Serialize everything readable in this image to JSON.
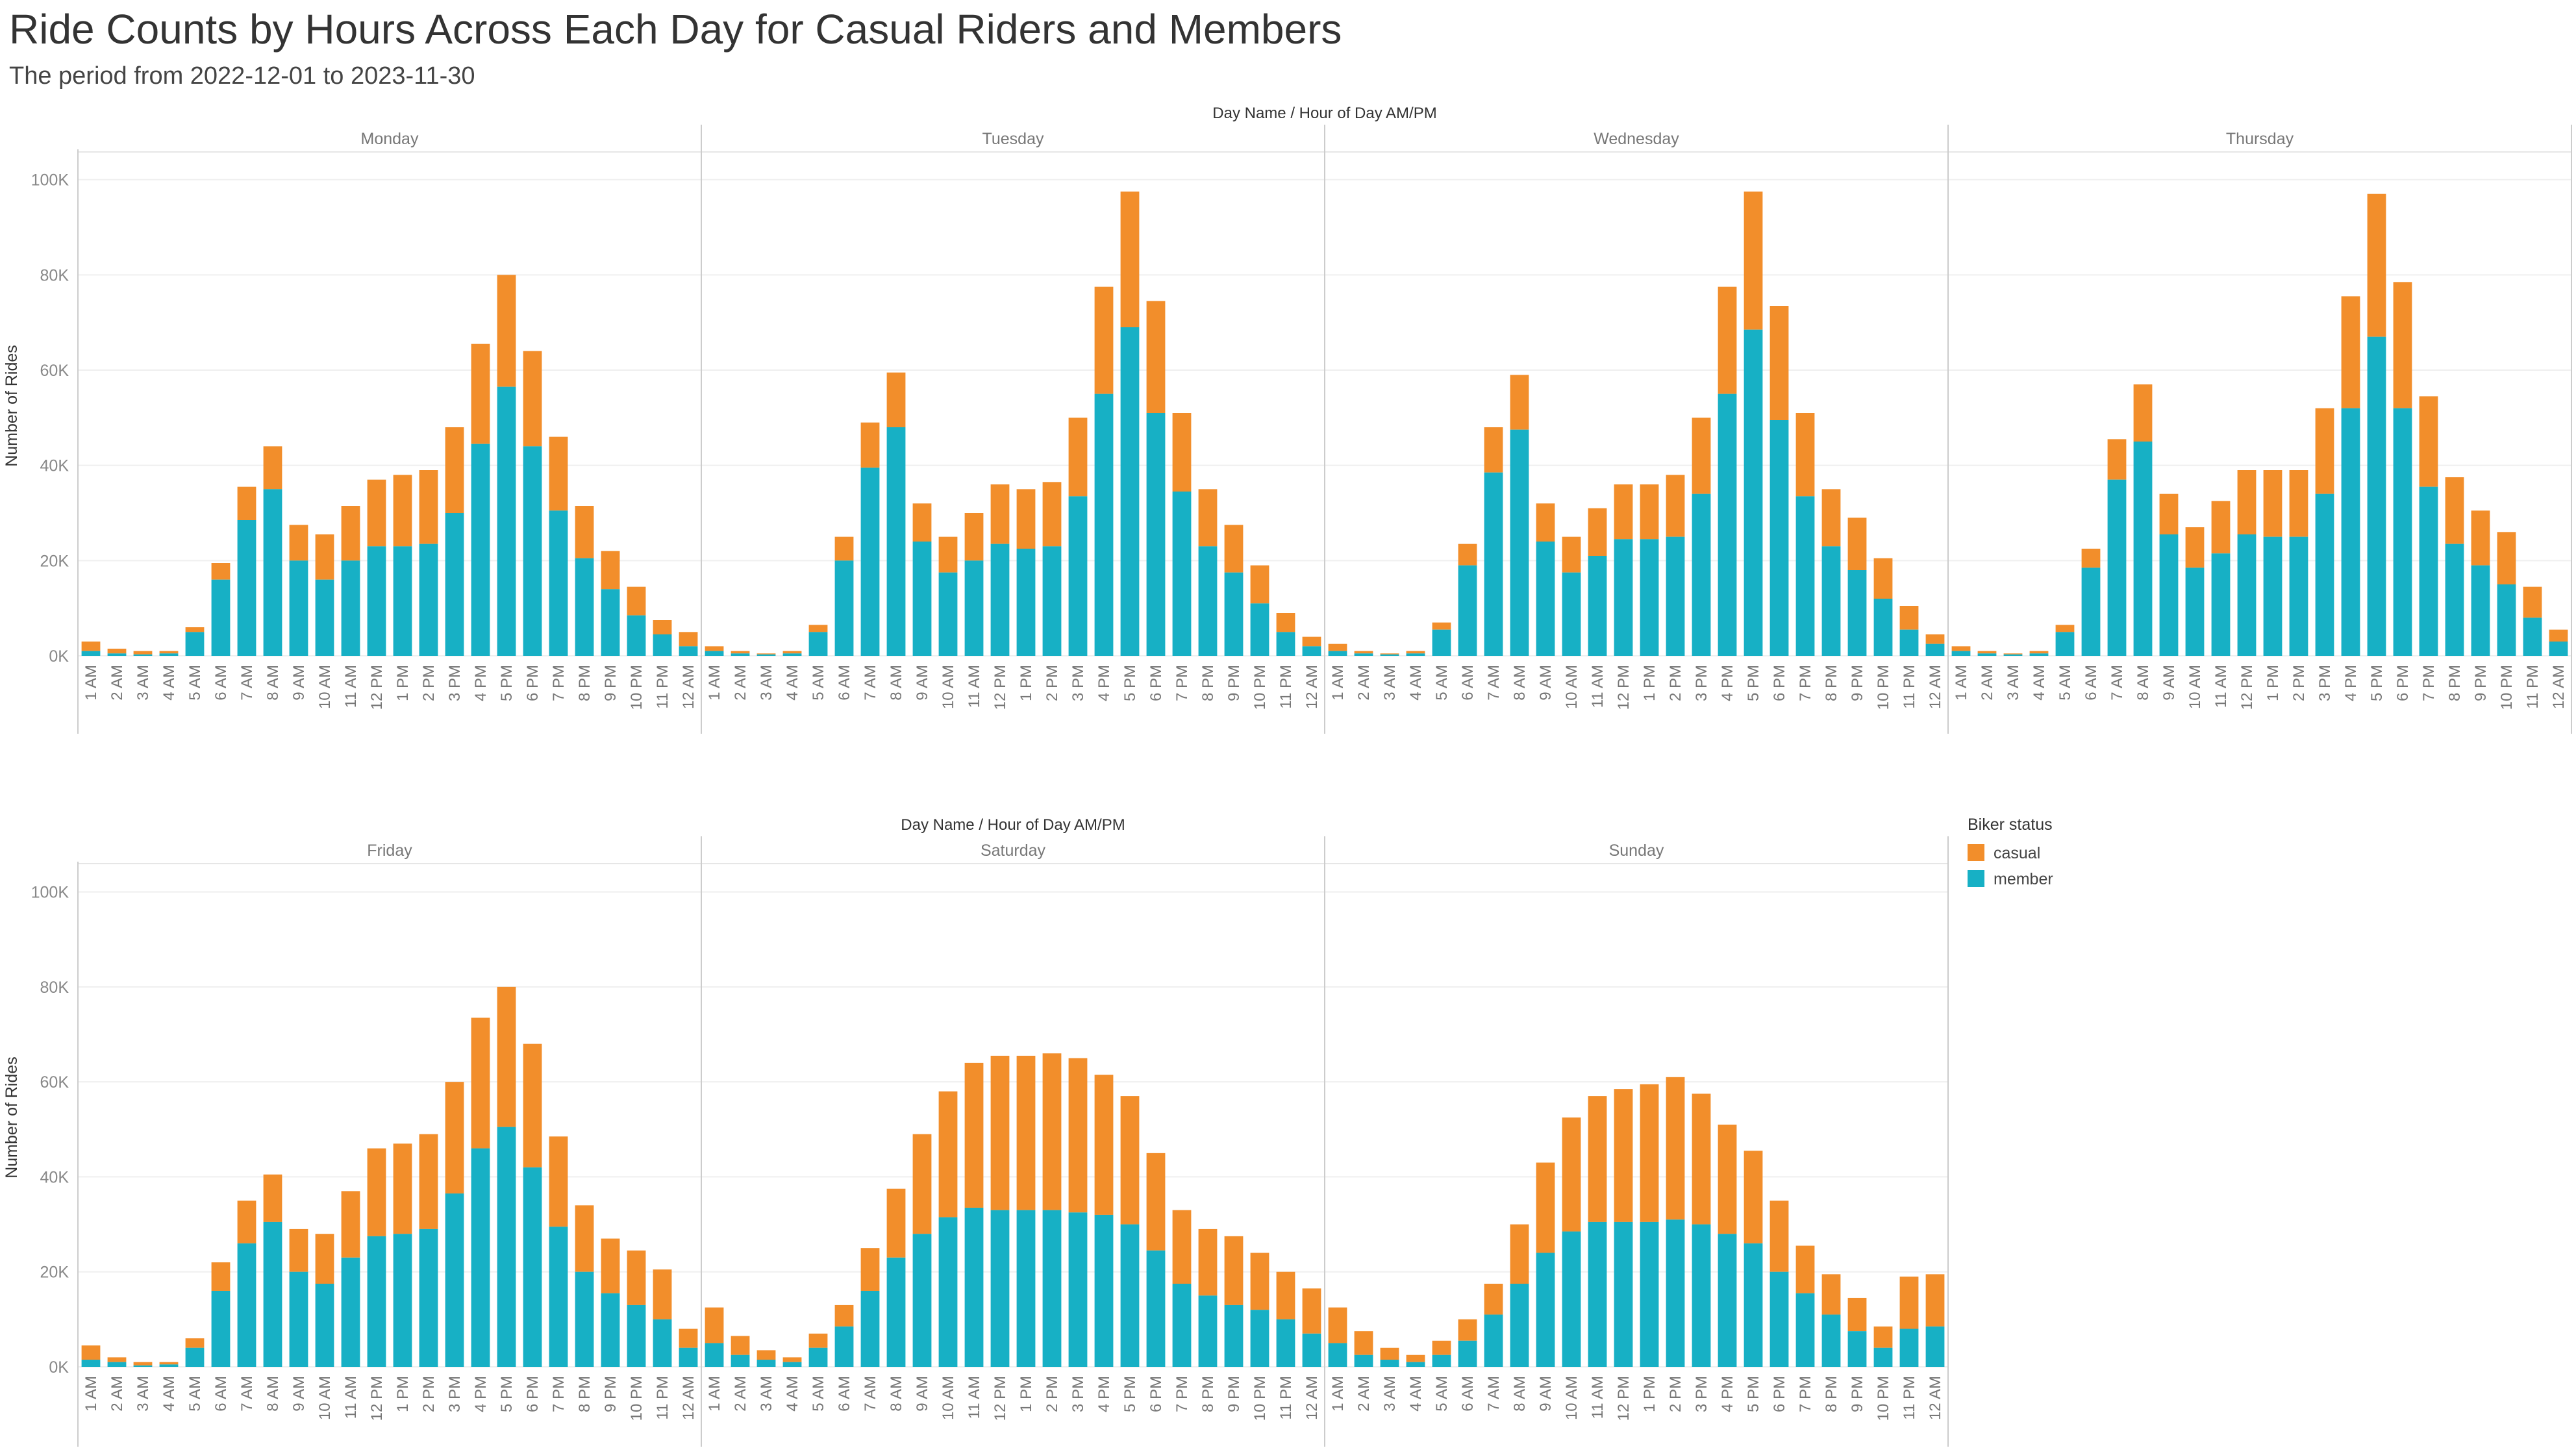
{
  "title": "Ride Counts by Hours Across Each Day for Casual Riders and Members",
  "subtitle": "The period from 2022-12-01 to 2023-11-30",
  "colors": {
    "casual": "#F28E2B",
    "member": "#17B0C5"
  },
  "legend": {
    "title": "Biker status",
    "items": [
      "casual",
      "member"
    ]
  },
  "chart_data": {
    "type": "bar",
    "stacked": true,
    "header_label": "Day Name  /  Hour of Day AM/PM",
    "ylabel": "Number of Rides",
    "ylim": [
      0,
      105000
    ],
    "y_ticks": [
      0,
      20000,
      40000,
      60000,
      80000,
      100000
    ],
    "y_tick_labels": [
      "0K",
      "20K",
      "40K",
      "60K",
      "80K",
      "100K"
    ],
    "grid": true,
    "legend_position": "right",
    "hours": [
      "1 AM",
      "2 AM",
      "3 AM",
      "4 AM",
      "5 AM",
      "6 AM",
      "7 AM",
      "8 AM",
      "9 AM",
      "10 AM",
      "11 AM",
      "12 PM",
      "1 PM",
      "2 PM",
      "3 PM",
      "4 PM",
      "5 PM",
      "6 PM",
      "7 PM",
      "8 PM",
      "9 PM",
      "10 PM",
      "11 PM",
      "12 AM"
    ],
    "series_names": [
      "member",
      "casual"
    ],
    "days": [
      {
        "name": "Monday",
        "member": [
          1000,
          500,
          300,
          500,
          5000,
          16000,
          28500,
          35000,
          20000,
          16000,
          20000,
          23000,
          23000,
          23500,
          30000,
          44500,
          56500,
          44000,
          30500,
          20500,
          14000,
          8500,
          4500,
          2000
        ],
        "total": [
          3000,
          1500,
          1000,
          1000,
          6000,
          19500,
          35500,
          44000,
          27500,
          25500,
          31500,
          37000,
          38000,
          39000,
          48000,
          65500,
          80000,
          64000,
          46000,
          31500,
          22000,
          14500,
          7500,
          5000
        ]
      },
      {
        "name": "Tuesday",
        "member": [
          1000,
          500,
          300,
          500,
          5000,
          20000,
          39500,
          48000,
          24000,
          17500,
          20000,
          23500,
          22500,
          23000,
          33500,
          55000,
          69000,
          51000,
          34500,
          23000,
          17500,
          11000,
          5000,
          2000
        ],
        "total": [
          2000,
          1000,
          500,
          1000,
          6500,
          25000,
          49000,
          59500,
          32000,
          25000,
          30000,
          36000,
          35000,
          36500,
          50000,
          77500,
          97500,
          74500,
          51000,
          35000,
          27500,
          19000,
          9000,
          4000
        ]
      },
      {
        "name": "Wednesday",
        "member": [
          1000,
          500,
          300,
          500,
          5500,
          19000,
          38500,
          47500,
          24000,
          17500,
          21000,
          24500,
          24500,
          25000,
          34000,
          55000,
          68500,
          49500,
          33500,
          23000,
          18000,
          12000,
          5500,
          2500
        ],
        "total": [
          2500,
          1000,
          500,
          1000,
          7000,
          23500,
          48000,
          59000,
          32000,
          25000,
          31000,
          36000,
          36000,
          38000,
          50000,
          77500,
          97500,
          73500,
          51000,
          35000,
          29000,
          20500,
          10500,
          4500
        ]
      },
      {
        "name": "Thursday",
        "member": [
          1000,
          500,
          300,
          500,
          5000,
          18500,
          37000,
          45000,
          25500,
          18500,
          21500,
          25500,
          25000,
          25000,
          34000,
          52000,
          67000,
          52000,
          35500,
          23500,
          19000,
          15000,
          8000,
          3000
        ],
        "total": [
          2000,
          1000,
          500,
          1000,
          6500,
          22500,
          45500,
          57000,
          34000,
          27000,
          32500,
          39000,
          39000,
          39000,
          52000,
          75500,
          97000,
          78500,
          54500,
          37500,
          30500,
          26000,
          14500,
          5500
        ]
      },
      {
        "name": "Friday",
        "member": [
          1500,
          1000,
          300,
          500,
          4000,
          16000,
          26000,
          30500,
          20000,
          17500,
          23000,
          27500,
          28000,
          29000,
          36500,
          46000,
          50500,
          42000,
          29500,
          20000,
          15500,
          13000,
          10000,
          4000
        ],
        "total": [
          4500,
          2000,
          1000,
          1000,
          6000,
          22000,
          35000,
          40500,
          29000,
          28000,
          37000,
          46000,
          47000,
          49000,
          60000,
          73500,
          80000,
          68000,
          48500,
          34000,
          27000,
          24500,
          20500,
          8000
        ]
      },
      {
        "name": "Saturday",
        "member": [
          5000,
          2500,
          1500,
          1000,
          4000,
          8500,
          16000,
          23000,
          28000,
          31500,
          33500,
          33000,
          33000,
          33000,
          32500,
          32000,
          30000,
          24500,
          17500,
          15000,
          13000,
          12000,
          10000,
          7000
        ],
        "total": [
          12500,
          6500,
          3500,
          2000,
          7000,
          13000,
          25000,
          37500,
          49000,
          58000,
          64000,
          65500,
          65500,
          66000,
          65000,
          61500,
          57000,
          45000,
          33000,
          29000,
          27500,
          24000,
          20000,
          16500
        ]
      },
      {
        "name": "Sunday",
        "member": [
          5000,
          2500,
          1500,
          1000,
          2500,
          5500,
          11000,
          17500,
          24000,
          28500,
          30500,
          30500,
          30500,
          31000,
          30000,
          28000,
          26000,
          20000,
          15500,
          11000,
          7500,
          4000,
          8000,
          8500
        ],
        "total": [
          12500,
          7500,
          4000,
          2500,
          5500,
          10000,
          17500,
          30000,
          43000,
          52500,
          57000,
          58500,
          59500,
          61000,
          57500,
          51000,
          45500,
          35000,
          25500,
          19500,
          14500,
          8500,
          19000,
          19500
        ]
      }
    ]
  }
}
